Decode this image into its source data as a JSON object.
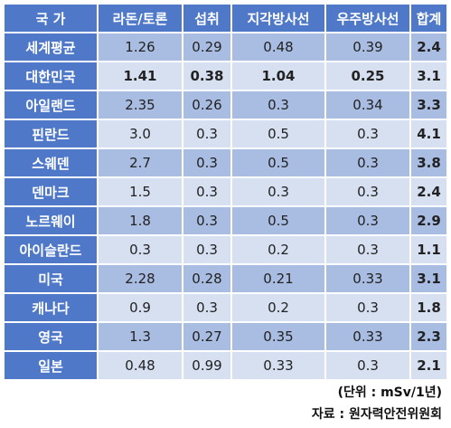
{
  "headers": [
    "국 가",
    "라돈/토론",
    "섭취",
    "지각방사선",
    "우주방사선",
    "합계"
  ],
  "rows": [
    {
      "country": "세계평균",
      "radon": "1.26",
      "intake": "0.29",
      "terrestrial": "0.48",
      "cosmic": "0.39",
      "total": "2.4"
    },
    {
      "country": "대한민국",
      "radon": "1.41",
      "intake": "0.38",
      "terrestrial": "1.04",
      "cosmic": "0.25",
      "total": "3.1"
    },
    {
      "country": "아일랜드",
      "radon": "2.35",
      "intake": "0.26",
      "terrestrial": "0.3",
      "cosmic": "0.34",
      "total": "3.3"
    },
    {
      "country": "핀란드",
      "radon": "3.0",
      "intake": "0.3",
      "terrestrial": "0.5",
      "cosmic": "0.3",
      "total": "4.1"
    },
    {
      "country": "스웨덴",
      "radon": "2.7",
      "intake": "0.3",
      "terrestrial": "0.5",
      "cosmic": "0.3",
      "total": "3.8"
    },
    {
      "country": "덴마크",
      "radon": "1.5",
      "intake": "0.3",
      "terrestrial": "0.3",
      "cosmic": "0.3",
      "total": "2.4"
    },
    {
      "country": "노르웨이",
      "radon": "1.8",
      "intake": "0.3",
      "terrestrial": "0.5",
      "cosmic": "0.3",
      "total": "2.9"
    },
    {
      "country": "아이슬란드",
      "radon": "0.3",
      "intake": "0.3",
      "terrestrial": "0.2",
      "cosmic": "0.3",
      "total": "1.1"
    },
    {
      "country": "미국",
      "radon": "2.28",
      "intake": "0.28",
      "terrestrial": "0.21",
      "cosmic": "0.33",
      "total": "3.1"
    },
    {
      "country": "캐나다",
      "radon": "0.9",
      "intake": "0.3",
      "terrestrial": "0.2",
      "cosmic": "0.3",
      "total": "1.8"
    },
    {
      "country": "영국",
      "radon": "1.3",
      "intake": "0.27",
      "terrestrial": "0.35",
      "cosmic": "0.33",
      "total": "2.3"
    },
    {
      "country": "일본",
      "radon": "0.48",
      "intake": "0.99",
      "terrestrial": "0.33",
      "cosmic": "0.3",
      "total": "2.1"
    }
  ],
  "unit_note": "(단위 : mSv/1년)",
  "source_note": "자료 : 원자력안전위원회",
  "colors": {
    "header_bg": "#4f79c8",
    "row_dark": "#a9bde3",
    "row_light": "#d6e0f1"
  }
}
